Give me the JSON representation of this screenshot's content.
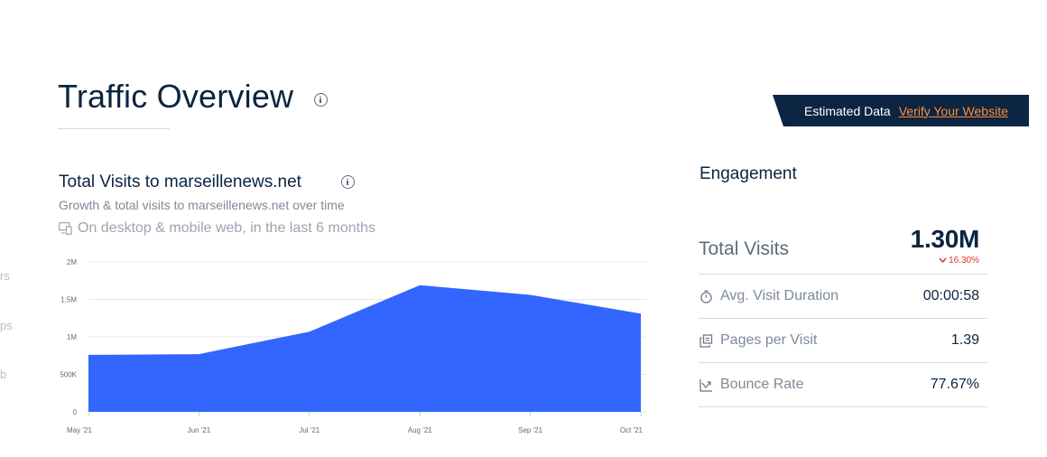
{
  "left_edge": [
    "rs",
    "ps",
    "b"
  ],
  "page_title": "Traffic Overview",
  "banner": {
    "text": "Estimated Data",
    "link": "Verify Your Website",
    "background": "#0b2542",
    "link_color": "#ff8c3a"
  },
  "visits_card": {
    "title": "Total Visits to marseillenews.net",
    "subtitle": "Growth & total visits to marseillenews.net over time",
    "scope": "On desktop & mobile web, in the last 6 months"
  },
  "chart_data": {
    "type": "area",
    "categories": [
      "May '21",
      "Jun '21",
      "Jul '21",
      "Aug '21",
      "Sep '21",
      "Oct '21"
    ],
    "values": [
      760000,
      770000,
      1070000,
      1690000,
      1560000,
      1310000
    ],
    "y_ticks": [
      "0",
      "500K",
      "1M",
      "1.5M",
      "2M"
    ],
    "ylim": [
      0,
      2000000
    ],
    "grid": true,
    "color": "#3366ff"
  },
  "engagement": {
    "title": "Engagement",
    "total_visits": {
      "label": "Total Visits",
      "value": "1.30M",
      "change": "16.30%",
      "change_color": "#e5352b"
    },
    "rows": [
      {
        "icon": "stopwatch-icon",
        "label": "Avg. Visit Duration",
        "value": "00:00:58"
      },
      {
        "icon": "pages-icon",
        "label": "Pages per Visit",
        "value": "1.39"
      },
      {
        "icon": "bounce-icon",
        "label": "Bounce Rate",
        "value": "77.67%"
      }
    ]
  }
}
